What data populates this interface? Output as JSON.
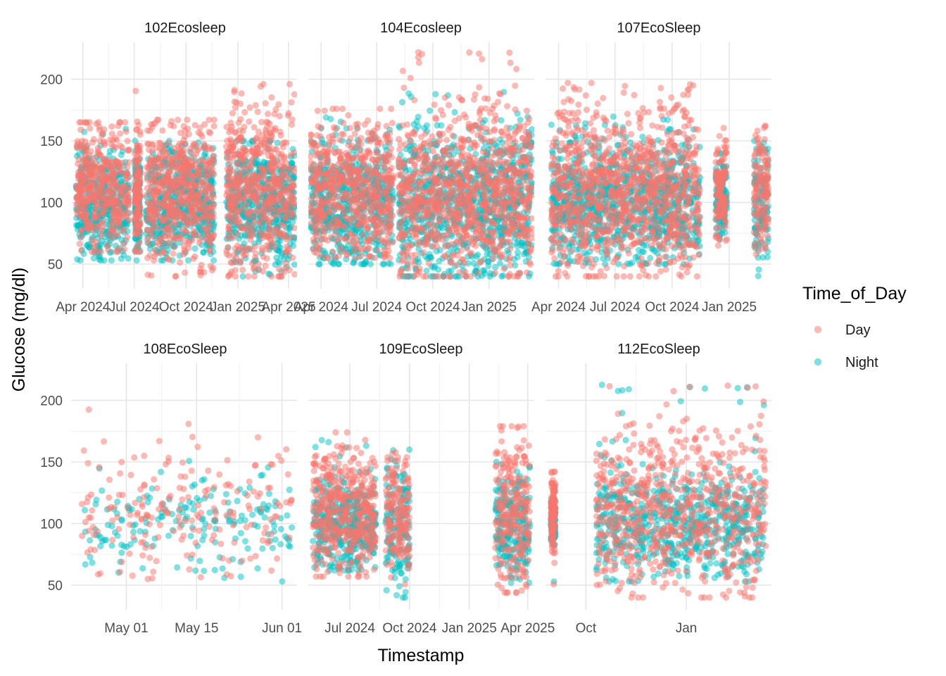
{
  "chart_data": {
    "type": "scatter",
    "xlabel": "Timestamp",
    "ylabel": "Glucose (mg/dl)",
    "y_ticks": [
      50,
      100,
      150,
      200
    ],
    "legend": {
      "title": "Time_of_Day",
      "position": "right",
      "entries": [
        {
          "name": "Day",
          "color": "#F8766D"
        },
        {
          "name": "Night",
          "color": "#00BFC4"
        }
      ]
    },
    "point_opacity": 0.5,
    "grid": true,
    "x_axis_scope": "free per panel",
    "y_axis_scope": "shared",
    "ylim": [
      30,
      230
    ],
    "panels": [
      {
        "title": "102Ecosleep",
        "x_ticks": [
          "Apr 2024",
          "Jul 2024",
          "Oct 2024",
          "Jan 2025",
          "Apr 2025"
        ],
        "xlim": [
          "2024-03-11",
          "2025-04-16"
        ],
        "segments": [
          {
            "from": "2024-03-20",
            "to": "2024-06-22",
            "day_range": [
              60,
              165
            ],
            "night_range": [
              53,
              160
            ]
          },
          {
            "from": "2024-07-02",
            "to": "2024-07-12",
            "day_range": [
              60,
              193
            ],
            "night_range": [
              53,
              150
            ]
          },
          {
            "from": "2024-07-22",
            "to": "2024-11-20",
            "day_range": [
              40,
              167
            ],
            "night_range": [
              53,
              150
            ]
          },
          {
            "from": "2024-12-11",
            "to": "2025-04-12",
            "day_range": [
              40,
              196
            ],
            "night_range": [
              40,
              150
            ]
          }
        ]
      },
      {
        "title": "104Ecosleep",
        "x_ticks": [
          "Apr 2024",
          "Jul 2024",
          "Oct 2024",
          "Jan 2025"
        ],
        "xlim": [
          "2024-03-11",
          "2025-03-16"
        ],
        "segments": [
          {
            "from": "2024-03-14",
            "to": "2024-07-28",
            "day_range": [
              55,
              176
            ],
            "night_range": [
              50,
              170
            ]
          },
          {
            "from": "2024-08-06",
            "to": "2025-03-13",
            "day_range": [
              40,
              222
            ],
            "night_range": [
              40,
              191
            ]
          }
        ]
      },
      {
        "title": "107EcoSleep",
        "x_ticks": [
          "Apr 2024",
          "Jul 2024",
          "Oct 2024",
          "Jan 2025"
        ],
        "xlim": [
          "2024-03-11",
          "2025-03-10"
        ],
        "segments": [
          {
            "from": "2024-03-20",
            "to": "2024-11-15",
            "day_range": [
              40,
              197
            ],
            "night_range": [
              50,
              170
            ]
          },
          {
            "from": "2024-12-10",
            "to": "2024-12-28",
            "day_range": [
              65,
              162
            ],
            "night_range": [
              70,
              140
            ]
          },
          {
            "from": "2025-02-10",
            "to": "2025-03-05",
            "day_range": [
              58,
              162
            ],
            "night_range": [
              40,
              150
            ]
          }
        ]
      },
      {
        "title": "108EcoSleep",
        "x_ticks": [
          "May 01",
          "May 15",
          "Jun 01"
        ],
        "xlim": [
          "2024-04-20",
          "2024-06-04"
        ],
        "segments": [
          {
            "from": "2024-04-22",
            "to": "2024-06-03",
            "day_range": [
              55,
              193
            ],
            "night_range": [
              53,
              163
            ]
          }
        ]
      },
      {
        "title": "109EcoSleep",
        "x_ticks": [
          "Jul 2024",
          "Oct 2024",
          "Jan 2025",
          "Apr 2025"
        ],
        "xlim": [
          "2024-04-28",
          "2025-04-11"
        ],
        "segments": [
          {
            "from": "2024-05-05",
            "to": "2024-08-10",
            "day_range": [
              57,
              174
            ],
            "night_range": [
              62,
              168
            ]
          },
          {
            "from": "2024-08-25",
            "to": "2024-10-01",
            "day_range": [
              50,
              158
            ],
            "night_range": [
              40,
              160
            ]
          },
          {
            "from": "2025-02-10",
            "to": "2025-04-04",
            "day_range": [
              44,
              179
            ],
            "night_range": [
              52,
              150
            ]
          }
        ]
      },
      {
        "title": "112EcoSleep",
        "x_ticks": [
          "Oct",
          "Jan"
        ],
        "xlim": [
          "2024-08-25",
          "2025-03-20"
        ],
        "segments": [
          {
            "from": "2024-08-30",
            "to": "2024-09-03",
            "day_range": [
              50,
              142
            ],
            "night_range": [
              52,
              120
            ]
          },
          {
            "from": "2024-10-10",
            "to": "2025-03-15",
            "day_range": [
              40,
              212
            ],
            "night_range": [
              53,
              213
            ]
          }
        ]
      }
    ]
  }
}
